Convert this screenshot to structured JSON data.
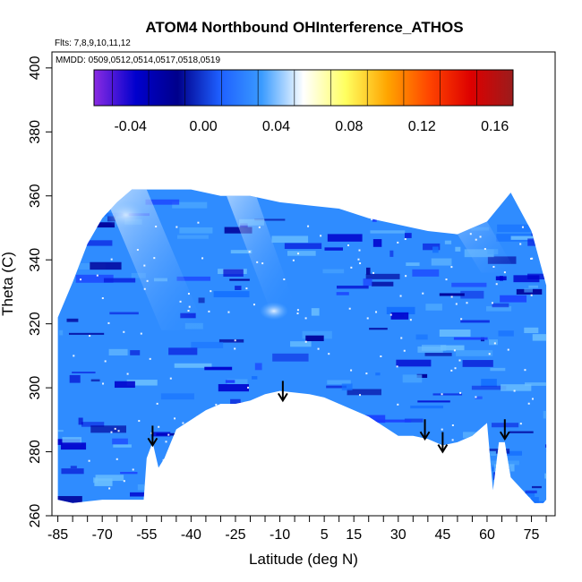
{
  "chart_data": {
    "type": "heatmap",
    "title": "ATOM4 Northbound OHInterference_ATHOS",
    "flights_label": "Flts: 7,8,9,10,11,12",
    "dates_label": "MMDD: 0509,0512,0514,0517,0518,0519",
    "xlabel": "Latitude (deg N)",
    "ylabel": "Theta (C)",
    "xlim": [
      -87,
      83
    ],
    "ylim": [
      260,
      405
    ],
    "x_ticks": [
      -85,
      -70,
      -55,
      -40,
      -25,
      -10,
      5,
      15,
      30,
      45,
      60,
      75
    ],
    "x_tick_labels": [
      "-85",
      "-70",
      "-55",
      "-40",
      "-25",
      "-10",
      "5",
      "15",
      "30",
      "45",
      "60",
      "75"
    ],
    "y_ticks": [
      260,
      280,
      300,
      320,
      340,
      360,
      380,
      400
    ],
    "y_tick_labels": [
      "260",
      "280",
      "300",
      "320",
      "340",
      "360",
      "380",
      "400"
    ],
    "colorbar": {
      "range": [
        -0.06,
        0.17
      ],
      "ticks": [
        -0.04,
        0.0,
        0.04,
        0.08,
        0.12,
        0.16
      ],
      "tick_labels": [
        "-0.04",
        "0.00",
        "0.04",
        "0.08",
        "0.12",
        "0.16"
      ],
      "colors": [
        "#8a2be2",
        "#0000cd",
        "#00008b",
        "#1e5fff",
        "#3a9bff",
        "#ffffff",
        "#ffff60",
        "#ffa500",
        "#ff4500",
        "#dd0000",
        "#9b1c1c"
      ]
    },
    "field_color": "#2f8cff",
    "tropopause_arrows_lat": [
      -53,
      -9,
      39,
      45,
      66
    ],
    "tropopause_arrows_theta": [
      282,
      296,
      284,
      280,
      284
    ],
    "data_envelope": {
      "top_lat": [
        -85,
        -80,
        -75,
        -70,
        -65,
        -60,
        -50,
        -40,
        -30,
        -20,
        -10,
        0,
        10,
        20,
        30,
        40,
        50,
        60,
        68,
        75,
        80
      ],
      "top_theta": [
        322,
        333,
        345,
        353,
        358,
        362,
        362,
        362,
        360,
        360,
        358,
        357,
        356,
        353,
        351,
        349,
        348,
        352,
        361,
        349,
        332
      ],
      "bottom_lat": [
        -85,
        -80,
        -70,
        -60,
        -56,
        -55,
        -53,
        -51,
        -49,
        -45,
        -40,
        -35,
        -30,
        -25,
        -20,
        -15,
        -10,
        0,
        5,
        10,
        15,
        20,
        25,
        30,
        35,
        40,
        45,
        50,
        55,
        60,
        62,
        64,
        66,
        68,
        70,
        72,
        76,
        79,
        80
      ],
      "bottom_theta": [
        265,
        264,
        265,
        265,
        265,
        278,
        283,
        275,
        278,
        287,
        290,
        293,
        295,
        295,
        296,
        298,
        299,
        298,
        297,
        295,
        293,
        291,
        288,
        285,
        285,
        284,
        282,
        283,
        285,
        289,
        268,
        283,
        283,
        272,
        270,
        268,
        264,
        264,
        265
      ]
    }
  }
}
